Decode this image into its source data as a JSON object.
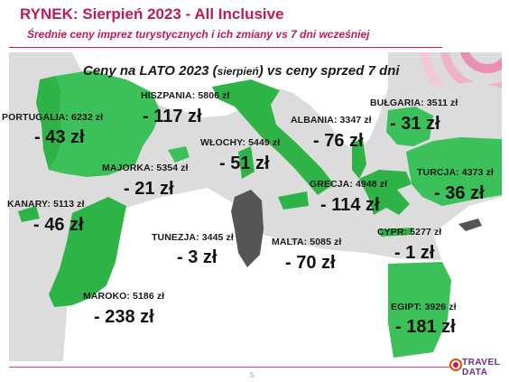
{
  "header": {
    "title": "RYNEK: Sierpień 2023 - All Inclusive",
    "subtitle": "Średnie ceny imprez turystycznych i ich zmiany vs 7 dni wcześniej"
  },
  "map": {
    "title_main": "Ceny na LATO 2023 (",
    "title_small": "sierpień",
    "title_end": ") vs ceny sprzed 7 dni",
    "colors": {
      "sea": "#dcdcdc",
      "land": "#ffffff",
      "highlight": "#2eb347",
      "highlight_light": "#3cc05a",
      "tunisia": "#555555"
    },
    "destinations": [
      {
        "name": "PORTUGALIA: 6232 zł",
        "change": "- 43 zł"
      },
      {
        "name": "HISZPANIA: 5806 zł",
        "change": "- 117 zł"
      },
      {
        "name": "MAJORKA: 5354 zł",
        "change": "- 21 zł"
      },
      {
        "name": "WŁOCHY: 5449 zł",
        "change": "- 51 zł"
      },
      {
        "name": "ALBANIA: 3347 zł",
        "change": "- 76 zł"
      },
      {
        "name": "BUŁGARIA: 3511 zł",
        "change": "- 31 zł"
      },
      {
        "name": "TURCJA: 4373 zł",
        "change": "- 36 zł"
      },
      {
        "name": "GRECJA: 4948 zł",
        "change": "- 114 zł"
      },
      {
        "name": "KANARY: 5113 zł",
        "change": "- 46 zł"
      },
      {
        "name": "TUNEZJA: 3445 zł",
        "change": "- 3 zł"
      },
      {
        "name": "MALTA: 5085 zł",
        "change": "- 70 zł"
      },
      {
        "name": "CYPR: 5277 zł",
        "change": "- 1 zł"
      },
      {
        "name": "MAROKO: 5186 zł",
        "change": "- 238 zł"
      },
      {
        "name": "EGIPT: 3926 zł",
        "change": "- 181 zł"
      }
    ]
  },
  "footer": {
    "page_number": "5",
    "logo_line1": "TRAVEL",
    "logo_line2": "DATA"
  }
}
